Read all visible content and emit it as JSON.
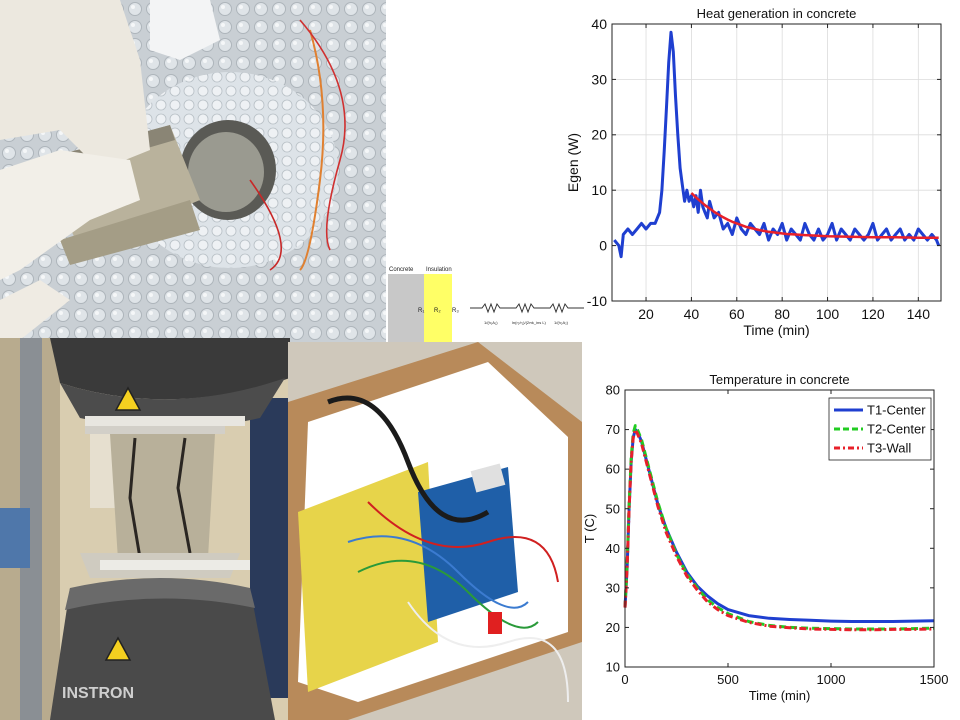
{
  "photos": {
    "sample_photo": "concrete sample in bubble wrap with thermocouple wires",
    "press_photo": "cracked cylinder in compression testing machine",
    "electronics_photo": "arduino board with wiring in a box"
  },
  "press_brand": "INSTRON",
  "diagram": {
    "concrete_label": "Concrete",
    "insulation_label": "Insulation",
    "r1_label": "R₁",
    "r2_label": "R₂",
    "r3_label": "R₃",
    "terms": [
      "1/(h₁A₁)",
      "ln(r₂/r₁)/(2πk_ins L)",
      "1/(h₂A₂)"
    ]
  },
  "colors": {
    "blue": "#1f3fd0",
    "red": "#e8202a",
    "green": "#22cc22",
    "insulation_yellow": "#ffff66",
    "concrete_gray": "#c8c8c8"
  },
  "chart_data": [
    {
      "type": "line",
      "title": "Heat generation in concrete",
      "xlabel": "Time (min)",
      "ylabel": "Egen (W)",
      "xlim": [
        5,
        150
      ],
      "ylim": [
        -10,
        40
      ],
      "xticks": [
        20,
        40,
        60,
        80,
        100,
        120,
        140
      ],
      "yticks": [
        -10,
        0,
        10,
        20,
        30,
        40
      ],
      "grid": true,
      "series": [
        {
          "color": "#1f3fd0",
          "x": [
            6,
            8,
            9,
            10,
            12,
            14,
            16,
            18,
            20,
            22,
            24,
            26,
            27,
            28,
            29,
            30,
            31,
            32,
            33,
            34,
            35,
            36,
            37,
            38,
            39,
            40,
            41,
            42,
            43,
            44,
            45,
            46,
            47,
            48,
            50,
            52,
            54,
            56,
            58,
            60,
            62,
            64,
            66,
            68,
            70,
            72,
            74,
            76,
            78,
            80,
            82,
            84,
            86,
            88,
            90,
            92,
            94,
            96,
            98,
            100,
            102,
            104,
            106,
            108,
            110,
            112,
            114,
            116,
            118,
            120,
            122,
            124,
            126,
            128,
            130,
            132,
            134,
            136,
            138,
            140,
            142,
            144,
            146,
            148,
            149
          ],
          "y": [
            1,
            0,
            -2,
            2,
            3,
            2,
            3,
            4,
            3,
            4,
            4,
            6,
            10,
            17,
            25,
            33,
            38.5,
            35,
            27,
            20,
            14,
            11,
            8,
            10,
            8,
            9,
            7,
            9,
            6,
            10,
            7,
            6,
            5,
            8,
            5,
            6,
            3,
            4,
            2,
            5,
            3,
            2,
            4,
            3,
            2,
            4,
            1,
            3,
            2,
            4,
            1,
            3,
            2,
            1,
            4,
            2,
            1,
            3,
            1,
            2,
            4,
            1,
            3,
            2,
            1,
            3,
            2,
            1,
            2,
            4,
            1,
            2,
            3,
            1,
            2,
            3,
            1,
            2,
            1,
            3,
            2,
            1,
            2,
            1,
            0
          ]
        },
        {
          "color": "#e8202a",
          "x": [
            40,
            42,
            44,
            46,
            48,
            50,
            52,
            54,
            56,
            58,
            60,
            62,
            64,
            66,
            68,
            70,
            74,
            78,
            82,
            86,
            90,
            95,
            100,
            110,
            120,
            130,
            140,
            149
          ],
          "y": [
            9.5,
            8.7,
            8.0,
            7.3,
            6.7,
            6.1,
            5.6,
            5.1,
            4.7,
            4.3,
            4.0,
            3.7,
            3.4,
            3.2,
            3.0,
            2.8,
            2.5,
            2.3,
            2.1,
            2.0,
            1.9,
            1.8,
            1.7,
            1.6,
            1.5,
            1.5,
            1.4,
            1.4
          ]
        }
      ]
    },
    {
      "type": "line",
      "title": "Temperature in concrete",
      "xlabel": "Time (min)",
      "ylabel": "T (C)",
      "xlim": [
        0,
        1500
      ],
      "ylim": [
        10,
        80
      ],
      "xticks": [
        0,
        500,
        1000,
        1500
      ],
      "yticks": [
        10,
        20,
        30,
        40,
        50,
        60,
        70,
        80
      ],
      "grid": false,
      "legend": "top-right",
      "series": [
        {
          "name": "T1-Center",
          "color": "#1f3fd0",
          "dash": "solid",
          "x": [
            0,
            10,
            20,
            30,
            40,
            50,
            60,
            80,
            100,
            130,
            160,
            200,
            250,
            300,
            350,
            400,
            450,
            500,
            600,
            700,
            800,
            900,
            1000,
            1100,
            1200,
            1300,
            1400,
            1500
          ],
          "y": [
            25,
            35,
            50,
            62,
            68,
            70,
            69.5,
            67,
            63,
            57,
            51,
            45,
            39,
            34,
            30.5,
            28,
            26,
            24.5,
            23,
            22.3,
            22,
            21.8,
            21.6,
            21.5,
            21.5,
            21.5,
            21.6,
            21.7
          ]
        },
        {
          "name": "T2-Center",
          "color": "#22cc22",
          "dash": "dashed",
          "x": [
            0,
            10,
            20,
            30,
            40,
            50,
            60,
            80,
            100,
            130,
            160,
            200,
            250,
            300,
            350,
            400,
            450,
            500,
            600,
            700,
            800,
            900,
            1000,
            1100,
            1200,
            1300,
            1400,
            1500
          ],
          "y": [
            25,
            36,
            51,
            63,
            69,
            71,
            70,
            67.5,
            63.5,
            57.5,
            51.5,
            45,
            38.5,
            33.5,
            30,
            27,
            25,
            23.5,
            21.5,
            20.5,
            20,
            19.8,
            19.7,
            19.6,
            19.6,
            19.6,
            19.7,
            19.8
          ]
        },
        {
          "name": "T3-Wall",
          "color": "#e8202a",
          "dash": "dashdot",
          "x": [
            0,
            10,
            20,
            30,
            40,
            50,
            60,
            80,
            100,
            130,
            160,
            200,
            250,
            300,
            350,
            400,
            450,
            500,
            600,
            700,
            800,
            900,
            1000,
            1100,
            1200,
            1300,
            1400,
            1500
          ],
          "y": [
            25,
            35,
            50,
            62,
            68,
            70,
            69,
            66.5,
            62.5,
            56.5,
            50.5,
            44,
            38,
            33,
            29.5,
            26.5,
            24.5,
            23,
            21.3,
            20.3,
            19.9,
            19.6,
            19.5,
            19.4,
            19.4,
            19.5,
            19.5,
            19.6
          ]
        }
      ]
    }
  ]
}
